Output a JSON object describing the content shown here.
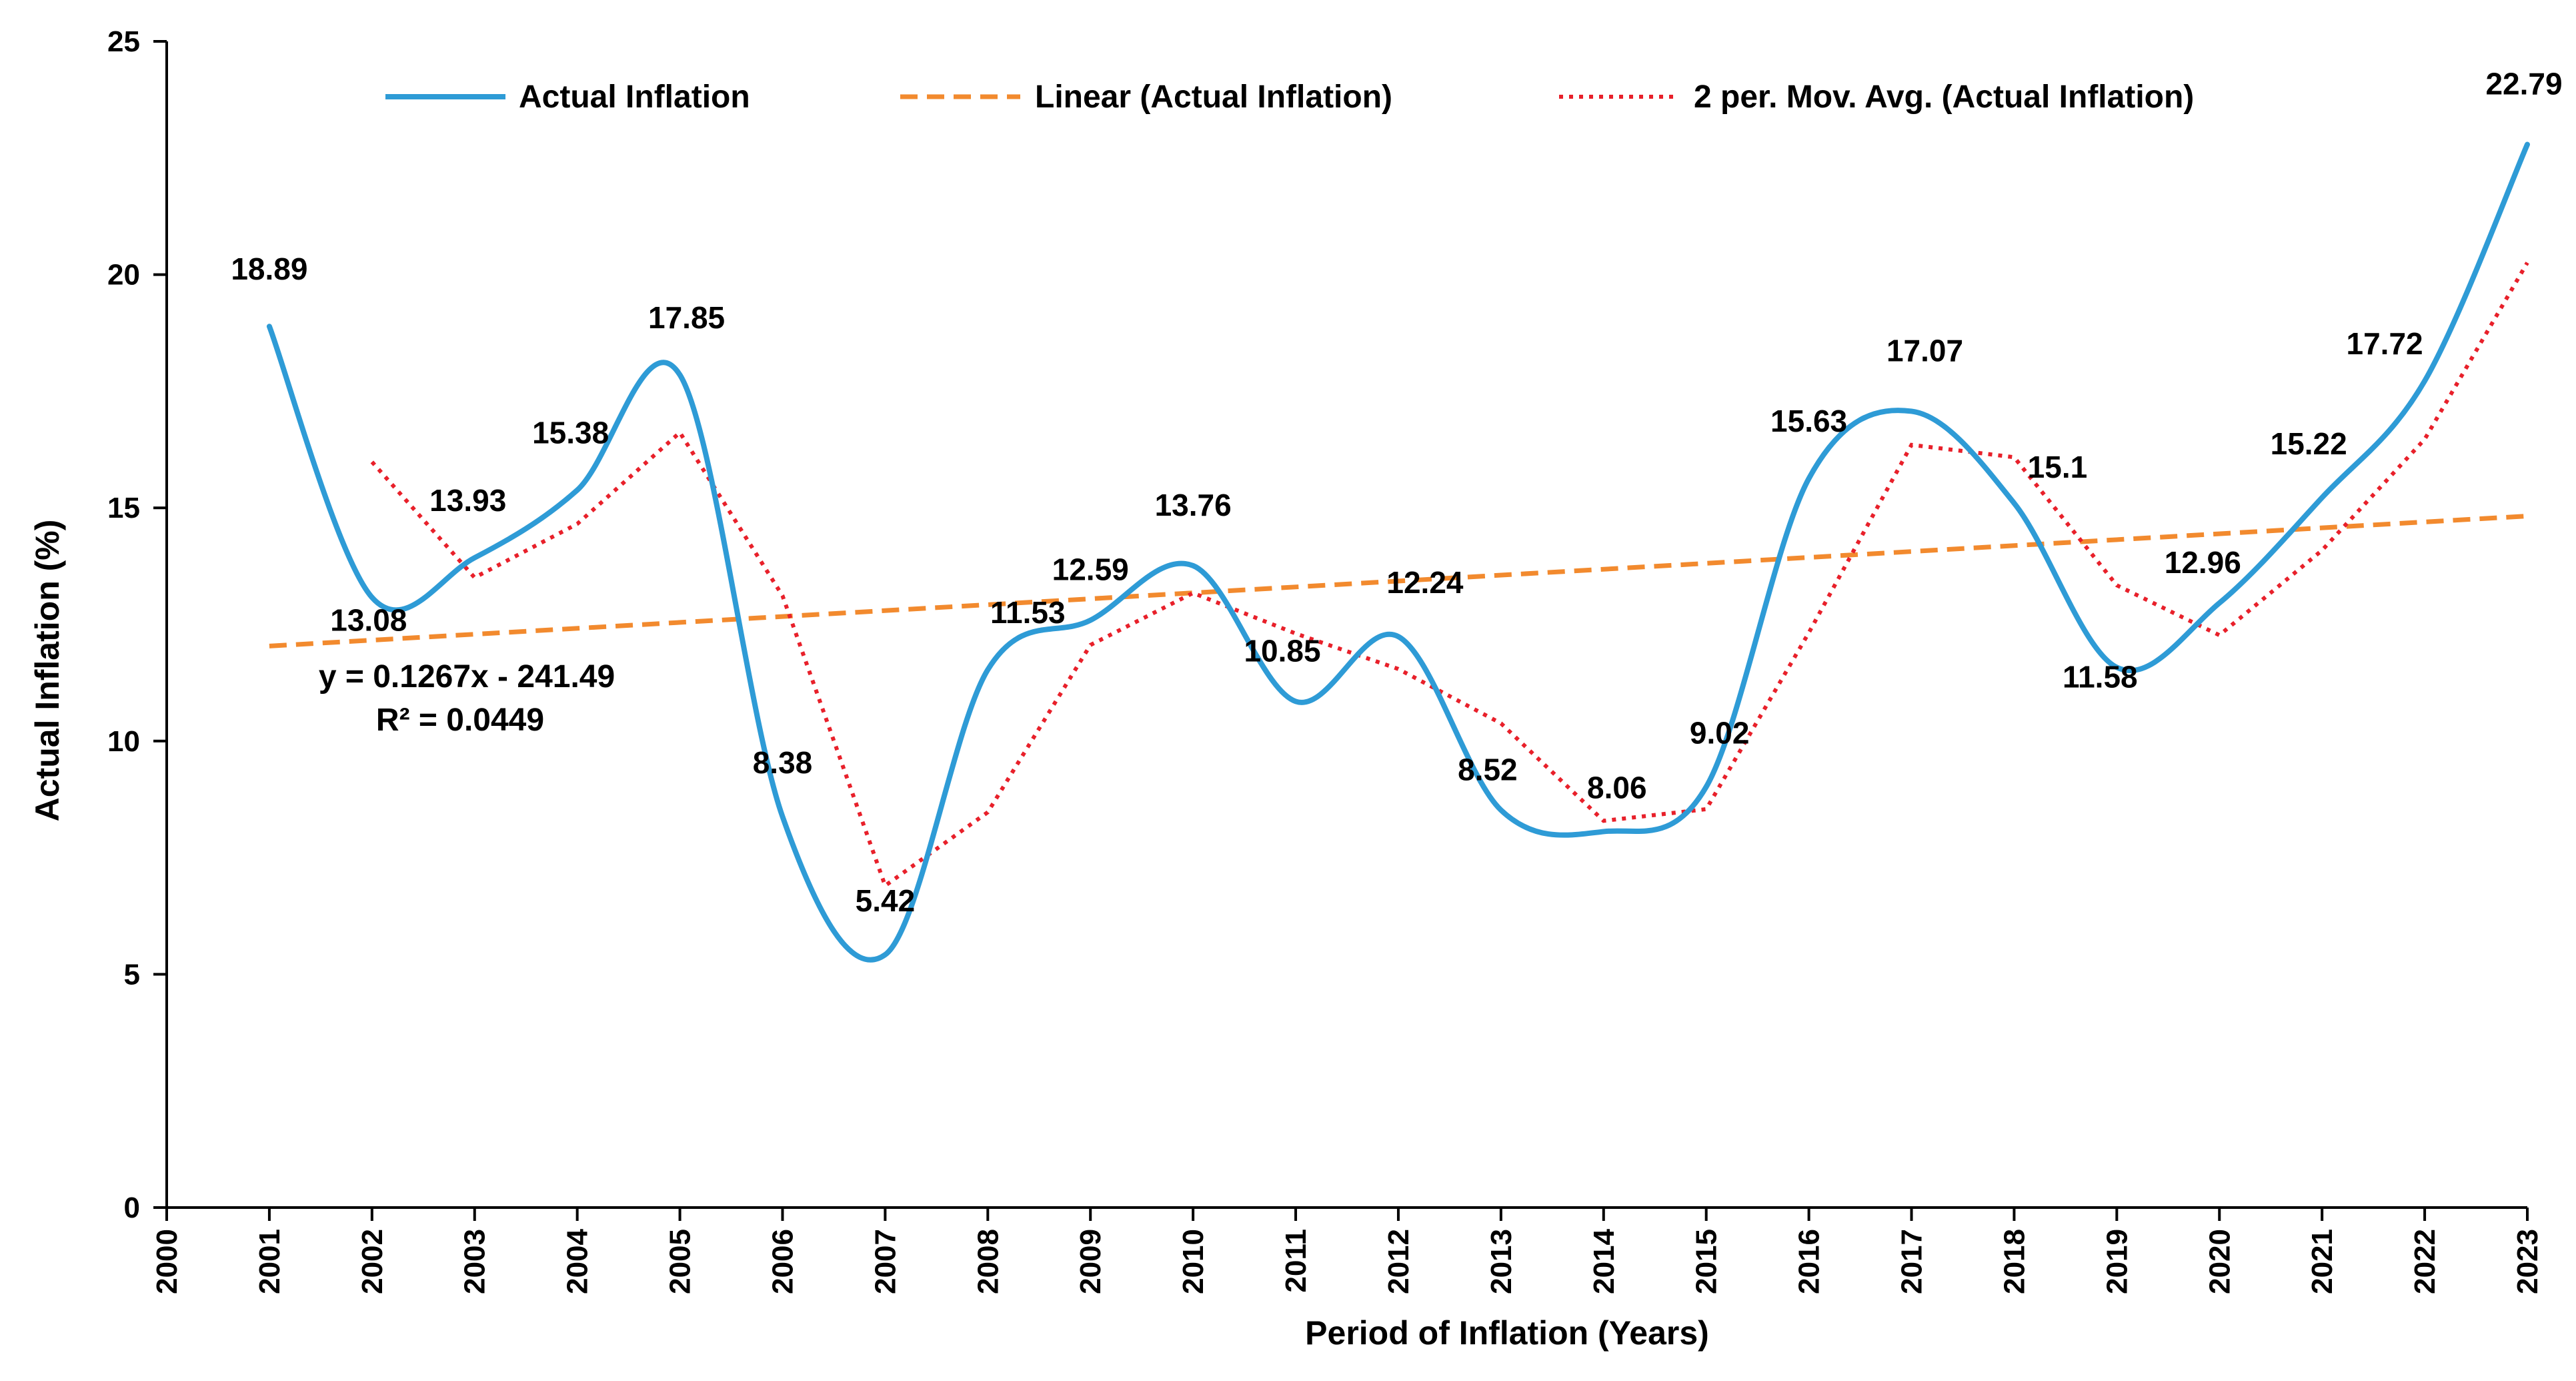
{
  "chart_data": {
    "type": "line",
    "xlabel": "Period of Inflation (Years)",
    "ylabel": "Actual Inflation (%)",
    "xlim": [
      2000,
      2023
    ],
    "ylim": [
      0,
      25
    ],
    "y_ticks": [
      0,
      5,
      10,
      15,
      20,
      25
    ],
    "x_ticks": [
      "2000",
      "2001",
      "2002",
      "2003",
      "2004",
      "2005",
      "2006",
      "2007",
      "2008",
      "2009",
      "2010",
      "2011",
      "2012",
      "2013",
      "2014",
      "2015",
      "2016",
      "2017",
      "2018",
      "2019",
      "2020",
      "2021",
      "2022",
      "2023"
    ],
    "grid": false,
    "legend_position": "top",
    "x": [
      2001,
      2002,
      2003,
      2004,
      2005,
      2006,
      2007,
      2008,
      2009,
      2010,
      2011,
      2012,
      2013,
      2014,
      2015,
      2016,
      2017,
      2018,
      2019,
      2020,
      2021,
      2022,
      2023
    ],
    "series": [
      {
        "name": "Actual Inflation",
        "style": "smooth-solid",
        "color": "#2E9BD6",
        "values": [
          18.89,
          13.08,
          13.93,
          15.38,
          17.85,
          8.38,
          5.42,
          11.53,
          12.59,
          13.76,
          10.85,
          12.24,
          8.52,
          8.06,
          9.02,
          15.63,
          17.07,
          15.1,
          11.58,
          12.96,
          15.22,
          17.72,
          22.79
        ],
        "data_labels": [
          "18.89",
          "13.08",
          "13.93",
          "15.38",
          "17.85",
          "8.38",
          "5.42",
          "11.53",
          "12.59",
          "13.76",
          "10.85",
          "12.24",
          "8.52",
          "8.06",
          "9.02",
          "15.63",
          "17.07",
          "15.1",
          "11.58",
          "12.96",
          "15.22",
          "17.72",
          "22.79"
        ]
      },
      {
        "name": "Linear (Actual Inflation)",
        "style": "dashed",
        "color": "#F28A2E",
        "slope": 0.1267,
        "intercept": -241.49
      },
      {
        "name": "2 per. Mov. Avg. (Actual Inflation)",
        "style": "dotted",
        "color": "#E8202A",
        "period": 2
      }
    ],
    "trendline_equation": "y = 0.1267x - 241.49",
    "trendline_r2": "R² = 0.0449"
  }
}
